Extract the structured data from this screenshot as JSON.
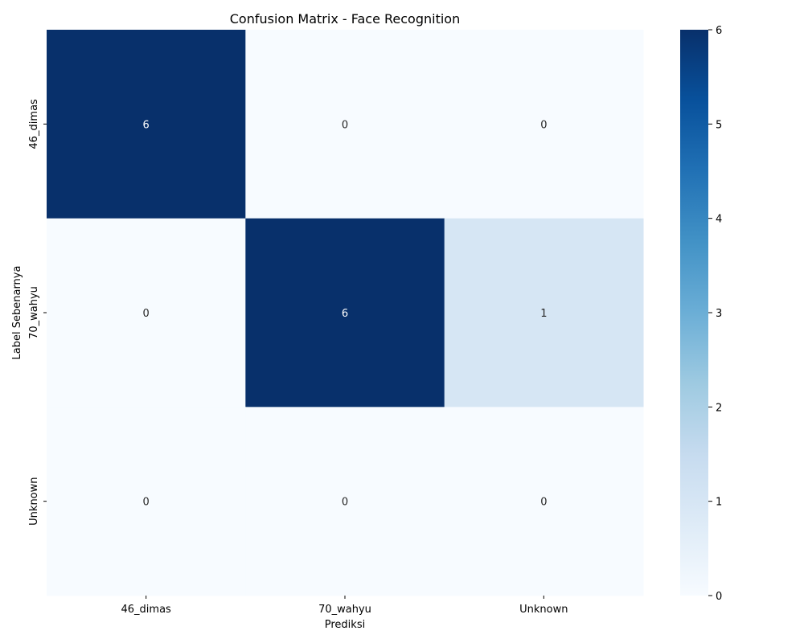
{
  "chart_data": {
    "type": "heatmap",
    "title": "Confusion Matrix - Face Recognition",
    "xlabel": "Prediksi",
    "ylabel": "Label Sebenarnya",
    "x_categories": [
      "46_dimas",
      "70_wahyu",
      "Unknown"
    ],
    "y_categories": [
      "46_dimas",
      "70_wahyu",
      "Unknown"
    ],
    "values": [
      [
        6,
        0,
        0
      ],
      [
        0,
        6,
        1
      ],
      [
        0,
        0,
        0
      ]
    ],
    "colorbar": {
      "min": 0,
      "max": 6,
      "ticks": [
        0,
        1,
        2,
        3,
        4,
        5,
        6
      ]
    },
    "colormap": "Blues",
    "colors": {
      "low": "#f7fbff",
      "high": "#08306b",
      "annotation_dark_bg": "#ffffff",
      "annotation_light_bg": "#262626"
    }
  }
}
